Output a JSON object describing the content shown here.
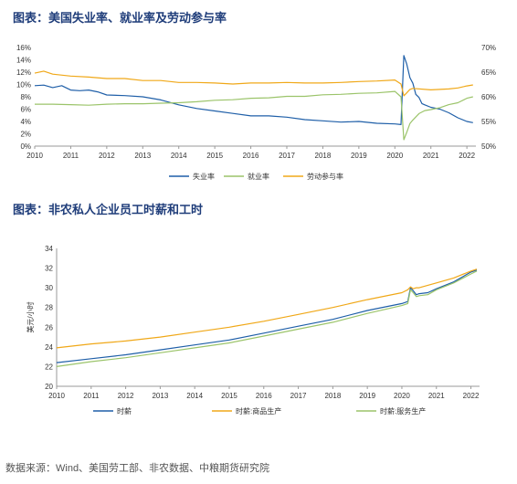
{
  "chart1_title": "图表：美国失业率、就业率及劳动参与率",
  "chart2_title": "图表：非农私人企业员工时薪和工时",
  "source": "数据来源：Wind、美国劳工部、非农数据、中粮期货研究院",
  "chart_data": [
    {
      "type": "line",
      "title": "图表：美国失业率、就业率及劳动参与率",
      "xlim": [
        2010,
        2022.25
      ],
      "ylim": [
        0,
        16
      ],
      "y2lim": [
        50,
        70
      ],
      "x_ticks": [
        "2010",
        "2011",
        "2012",
        "2013",
        "2014",
        "2015",
        "2016",
        "2017",
        "2018",
        "2019",
        "2020",
        "2021",
        "2022"
      ],
      "y_ticks": [
        "0%",
        "2%",
        "4%",
        "6%",
        "8%",
        "10%",
        "12%",
        "14%",
        "16%"
      ],
      "y2_ticks": [
        "50%",
        "55%",
        "60%",
        "65%",
        "70%"
      ],
      "grid": false,
      "legend_position": "bottom",
      "series": [
        {
          "name": "失业率",
          "color": "#1f5fa8",
          "axis": "left",
          "unit": "%",
          "x": [
            2010.0,
            2010.25,
            2010.5,
            2010.75,
            2011.0,
            2011.25,
            2011.5,
            2011.75,
            2012.0,
            2012.5,
            2013.0,
            2013.5,
            2014.0,
            2014.5,
            2015.0,
            2015.5,
            2016.0,
            2016.5,
            2017.0,
            2017.5,
            2018.0,
            2018.5,
            2019.0,
            2019.5,
            2020.0,
            2020.17,
            2020.25,
            2020.33,
            2020.42,
            2020.5,
            2020.58,
            2020.67,
            2020.75,
            2020.83,
            2021.0,
            2021.25,
            2021.5,
            2021.75,
            2022.0,
            2022.17
          ],
          "y": [
            9.8,
            9.9,
            9.5,
            9.8,
            9.1,
            9.0,
            9.1,
            8.8,
            8.3,
            8.2,
            8.0,
            7.5,
            6.7,
            6.1,
            5.7,
            5.3,
            4.9,
            4.9,
            4.7,
            4.3,
            4.1,
            3.9,
            4.0,
            3.7,
            3.6,
            3.5,
            14.7,
            13.3,
            11.1,
            10.2,
            8.4,
            7.9,
            6.9,
            6.7,
            6.3,
            6.0,
            5.4,
            4.6,
            4.0,
            3.8
          ]
        },
        {
          "name": "就业率",
          "color": "#9bc46a",
          "axis": "right",
          "unit": "%",
          "x": [
            2010.0,
            2010.5,
            2011.0,
            2011.5,
            2012.0,
            2012.5,
            2013.0,
            2013.5,
            2014.0,
            2014.5,
            2015.0,
            2015.5,
            2016.0,
            2016.5,
            2017.0,
            2017.5,
            2018.0,
            2018.5,
            2019.0,
            2019.5,
            2020.0,
            2020.17,
            2020.25,
            2020.33,
            2020.42,
            2020.5,
            2020.67,
            2020.83,
            2021.0,
            2021.25,
            2021.5,
            2021.75,
            2022.0,
            2022.17
          ],
          "y": [
            58.5,
            58.5,
            58.4,
            58.3,
            58.5,
            58.6,
            58.6,
            58.7,
            58.8,
            59.0,
            59.3,
            59.4,
            59.7,
            59.8,
            60.1,
            60.1,
            60.4,
            60.5,
            60.7,
            60.8,
            61.1,
            60.0,
            51.3,
            52.8,
            54.6,
            55.3,
            56.6,
            57.2,
            57.4,
            57.8,
            58.4,
            58.8,
            59.7,
            60.0
          ]
        },
        {
          "name": "劳动参与率",
          "color": "#f0a818",
          "axis": "right",
          "unit": "%",
          "x": [
            2010.0,
            2010.25,
            2010.5,
            2011.0,
            2011.5,
            2012.0,
            2012.5,
            2013.0,
            2013.5,
            2014.0,
            2014.5,
            2015.0,
            2015.5,
            2016.0,
            2016.5,
            2017.0,
            2017.5,
            2018.0,
            2018.5,
            2019.0,
            2019.5,
            2020.0,
            2020.17,
            2020.25,
            2020.33,
            2020.42,
            2020.5,
            2021.0,
            2021.5,
            2021.75,
            2022.0,
            2022.17
          ],
          "y": [
            64.8,
            65.2,
            64.6,
            64.2,
            64.0,
            63.7,
            63.7,
            63.3,
            63.3,
            62.9,
            62.9,
            62.8,
            62.6,
            62.8,
            62.8,
            62.9,
            62.8,
            62.8,
            62.9,
            63.1,
            63.2,
            63.4,
            62.6,
            60.2,
            60.8,
            61.5,
            61.7,
            61.4,
            61.6,
            61.8,
            62.2,
            62.4
          ]
        }
      ]
    },
    {
      "type": "line",
      "title": "图表：非农私人企业员工时薪和工时",
      "xlim": [
        2010,
        2022.25
      ],
      "ylim": [
        20,
        34
      ],
      "ylabel": "美元/小时",
      "x_ticks": [
        "2010",
        "2011",
        "2012",
        "2013",
        "2014",
        "2015",
        "2016",
        "2017",
        "2018",
        "2019",
        "2020",
        "2021",
        "2022"
      ],
      "y_ticks": [
        "20",
        "22",
        "24",
        "26",
        "28",
        "30",
        "32",
        "34"
      ],
      "grid": false,
      "legend_position": "bottom",
      "series": [
        {
          "name": "时薪",
          "color": "#1f5fa8",
          "x": [
            2010.0,
            2011.0,
            2012.0,
            2013.0,
            2014.0,
            2015.0,
            2016.0,
            2017.0,
            2018.0,
            2019.0,
            2020.0,
            2020.17,
            2020.25,
            2020.33,
            2020.42,
            2020.5,
            2020.75,
            2021.0,
            2021.5,
            2022.0,
            2022.17
          ],
          "y": [
            22.4,
            22.8,
            23.2,
            23.7,
            24.2,
            24.7,
            25.4,
            26.1,
            26.8,
            27.7,
            28.4,
            28.6,
            30.0,
            29.7,
            29.3,
            29.4,
            29.5,
            29.9,
            30.6,
            31.6,
            31.8
          ]
        },
        {
          "name": "时薪:商品生产",
          "color": "#f0a818",
          "x": [
            2010.0,
            2011.0,
            2012.0,
            2013.0,
            2014.0,
            2015.0,
            2016.0,
            2017.0,
            2018.0,
            2019.0,
            2020.0,
            2020.17,
            2020.25,
            2020.33,
            2020.42,
            2020.5,
            2021.0,
            2021.5,
            2022.0,
            2022.17
          ],
          "y": [
            23.9,
            24.3,
            24.6,
            25.0,
            25.5,
            26.0,
            26.6,
            27.3,
            28.0,
            28.8,
            29.5,
            29.8,
            30.1,
            29.9,
            30.0,
            30.0,
            30.5,
            31.0,
            31.7,
            31.9
          ]
        },
        {
          "name": "时薪:服务生产",
          "color": "#9bc46a",
          "x": [
            2010.0,
            2011.0,
            2012.0,
            2013.0,
            2014.0,
            2015.0,
            2016.0,
            2017.0,
            2018.0,
            2019.0,
            2020.0,
            2020.17,
            2020.25,
            2020.33,
            2020.42,
            2020.5,
            2020.75,
            2021.0,
            2021.5,
            2022.0,
            2022.17
          ],
          "y": [
            22.0,
            22.5,
            22.9,
            23.4,
            23.9,
            24.4,
            25.1,
            25.8,
            26.5,
            27.4,
            28.2,
            28.4,
            29.8,
            29.5,
            29.1,
            29.2,
            29.3,
            29.8,
            30.5,
            31.4,
            31.7
          ]
        }
      ]
    }
  ]
}
